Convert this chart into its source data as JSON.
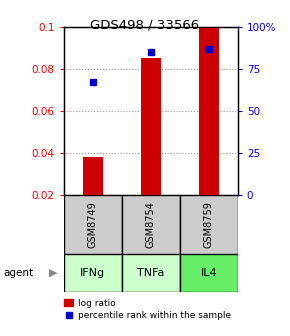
{
  "title": "GDS498 / 33566",
  "samples": [
    "GSM8749",
    "GSM8754",
    "GSM8759"
  ],
  "agents": [
    "IFNg",
    "TNFa",
    "IL4"
  ],
  "log_ratio": [
    0.038,
    0.085,
    0.1
  ],
  "log_ratio_base": 0.02,
  "percentile": [
    67,
    85,
    87
  ],
  "ylim_left": [
    0.02,
    0.1
  ],
  "ylim_right": [
    0,
    100
  ],
  "bar_color": "#cc0000",
  "point_color": "#0000cc",
  "grid_color": "#999999",
  "yticks_left": [
    0.02,
    0.04,
    0.06,
    0.08,
    0.1
  ],
  "yticks_right": [
    0,
    25,
    50,
    75,
    100
  ],
  "ytick_labels_right": [
    "0",
    "25",
    "50",
    "75",
    "100%"
  ],
  "sample_box_color": "#cccccc",
  "agent_box_colors": [
    "#ccffcc",
    "#ccffcc",
    "#66ee66"
  ],
  "bar_width": 0.35,
  "agent_label_color": "#000000"
}
